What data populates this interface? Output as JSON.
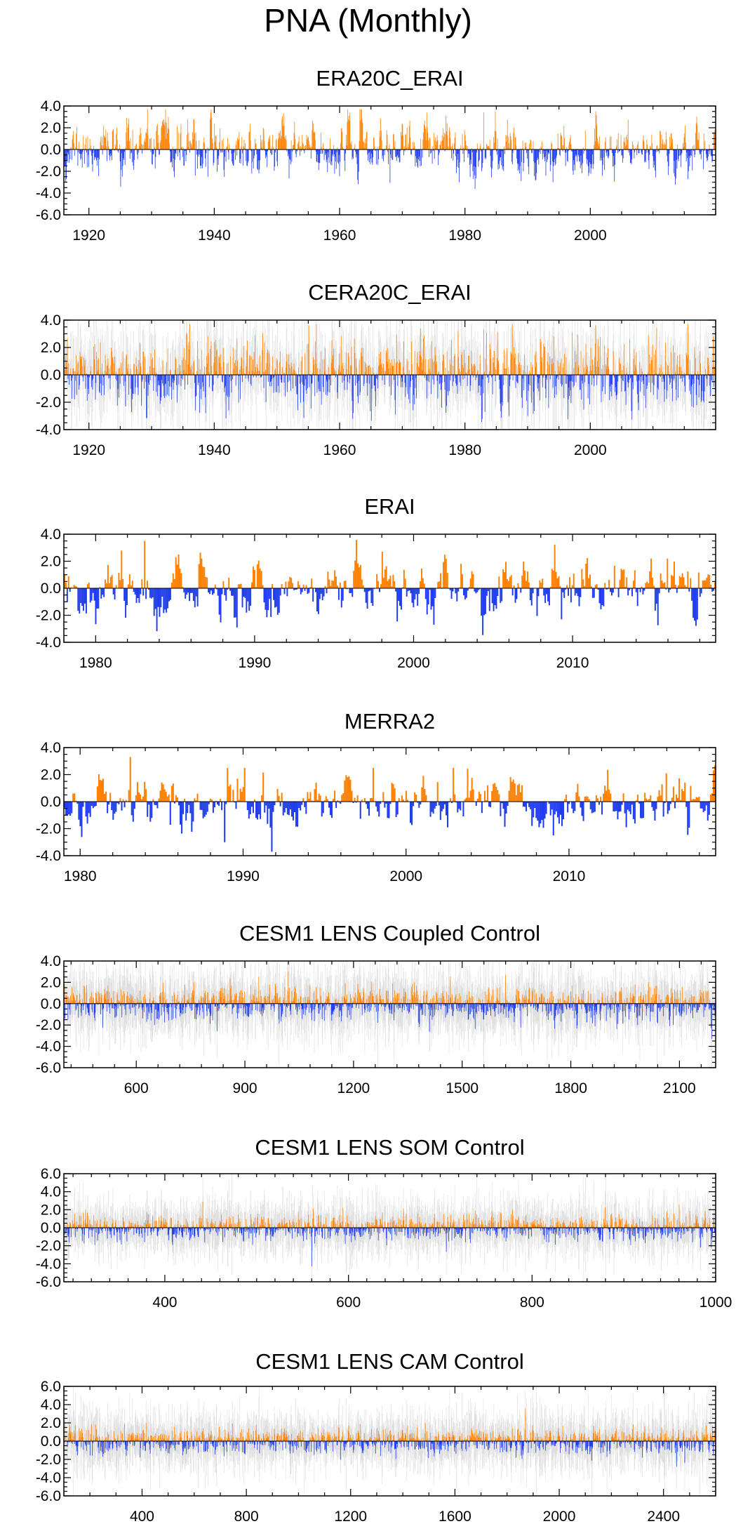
{
  "page": {
    "title": "PNA (Monthly)"
  },
  "colors": {
    "positive": "#ff8000",
    "negative": "#1f3cf0",
    "spread": "#b4b4b4",
    "axis": "#000000"
  },
  "chart_data": [
    {
      "id": "era20c-erai",
      "type": "bar",
      "title": "ERA20C_ERAI",
      "x_range": [
        1916,
        2020
      ],
      "ylim": [
        -6.0,
        4.0
      ],
      "yticks": [
        4.0,
        2.0,
        0.0,
        -2.0,
        -4.0,
        -6.0
      ],
      "yticklabels": [
        "4.0",
        "2.0",
        "0.0",
        "-2.0",
        "-4.0",
        "-6.0"
      ],
      "xticks": [
        1920,
        1940,
        1960,
        1980,
        2000
      ],
      "xticklabels": [
        "1920",
        "1940",
        "1960",
        "1980",
        "2000"
      ],
      "x_minor_step": 5,
      "y_minor_step": 0.5,
      "spread": false,
      "seed": 11,
      "n_bars": 1188,
      "amplitude": 2.2,
      "values_sample": [
        {
          "x": 1920,
          "y": -1.6
        },
        {
          "x": 1927,
          "y": 1.8
        },
        {
          "x": 1937,
          "y": -2.4
        },
        {
          "x": 1940,
          "y": 2.4
        },
        {
          "x": 1946,
          "y": -2.2
        },
        {
          "x": 1970,
          "y": 2.4
        },
        {
          "x": 1983,
          "y": 3.4
        },
        {
          "x": 1989,
          "y": -2.9
        },
        {
          "x": 2018,
          "y": -1.8
        }
      ]
    },
    {
      "id": "cera20c-erai",
      "type": "bar",
      "title": "CERA20C_ERAI",
      "x_range": [
        1916,
        2020
      ],
      "ylim": [
        -4.0,
        4.0
      ],
      "yticks": [
        4.0,
        2.0,
        0.0,
        -2.0,
        -4.0
      ],
      "yticklabels": [
        "4.0",
        "2.0",
        "0.0",
        "-2.0",
        "-4.0"
      ],
      "xticks": [
        1920,
        1940,
        1960,
        1980,
        2000
      ],
      "xticklabels": [
        "1920",
        "1940",
        "1960",
        "1980",
        "2000"
      ],
      "x_minor_step": 5,
      "y_minor_step": 0.5,
      "spread": true,
      "seed": 23,
      "n_bars": 1188,
      "amplitude": 2.2,
      "values_sample": [
        {
          "x": 1920,
          "y": -1.4
        },
        {
          "x": 1937,
          "y": -2.6
        },
        {
          "x": 1940,
          "y": 2.4
        },
        {
          "x": 1962,
          "y": -1.9
        },
        {
          "x": 1983,
          "y": 3.3
        },
        {
          "x": 1990,
          "y": -3.0
        },
        {
          "x": 2018,
          "y": -1.9
        }
      ]
    },
    {
      "id": "erai",
      "type": "bar",
      "title": "ERAI",
      "x_range": [
        1978,
        2019
      ],
      "ylim": [
        -4.0,
        4.0
      ],
      "yticks": [
        4.0,
        2.0,
        0.0,
        -2.0,
        -4.0
      ],
      "yticklabels": [
        "4.0",
        "2.0",
        "0.0",
        "-2.0",
        "-4.0"
      ],
      "xticks": [
        1980,
        1990,
        2000,
        2010
      ],
      "xticklabels": [
        "1980",
        "1990",
        "2000",
        "2010"
      ],
      "x_minor_step": 2,
      "y_minor_step": 0.5,
      "spread": false,
      "seed": 37,
      "n_bars": 480,
      "amplitude": 1.9,
      "values_sample": [
        {
          "x": 1983.1,
          "y": 3.5
        },
        {
          "x": 1988.9,
          "y": -2.9
        },
        {
          "x": 1998,
          "y": 2.7
        },
        {
          "x": 2009.3,
          "y": -2.3
        },
        {
          "x": 2016,
          "y": 2.2
        },
        {
          "x": 2017.7,
          "y": -2.4
        }
      ]
    },
    {
      "id": "merra2",
      "type": "bar",
      "title": "MERRA2",
      "x_range": [
        1979,
        2019
      ],
      "ylim": [
        -4.0,
        4.0
      ],
      "yticks": [
        4.0,
        2.0,
        0.0,
        -2.0,
        -4.0
      ],
      "yticklabels": [
        "4.0",
        "2.0",
        "0.0",
        "-2.0",
        "-4.0"
      ],
      "xticks": [
        1980,
        1990,
        2000,
        2010
      ],
      "xticklabels": [
        "1980",
        "1990",
        "2000",
        "2010"
      ],
      "x_minor_step": 2,
      "y_minor_step": 0.5,
      "spread": false,
      "seed": 41,
      "n_bars": 456,
      "amplitude": 1.8,
      "values_sample": [
        {
          "x": 1983.1,
          "y": 3.3
        },
        {
          "x": 1988.9,
          "y": -3.0
        },
        {
          "x": 1998,
          "y": 2.5
        },
        {
          "x": 2002.9,
          "y": 2.5
        },
        {
          "x": 2009,
          "y": -2.5
        },
        {
          "x": 2016,
          "y": 2.1
        }
      ]
    },
    {
      "id": "lens-coupled",
      "type": "bar",
      "title": "CESM1 LENS Coupled Control",
      "x_range": [
        400,
        2200
      ],
      "ylim": [
        -6.0,
        4.0
      ],
      "yticks": [
        4.0,
        2.0,
        0.0,
        -2.0,
        -4.0,
        -6.0
      ],
      "yticklabels": [
        "4.0",
        "2.0",
        "0.0",
        "-2.0",
        "-4.0",
        "-6.0"
      ],
      "xticks": [
        600,
        900,
        1200,
        1500,
        1800,
        2100
      ],
      "xticklabels": [
        "600",
        "900",
        "1200",
        "1500",
        "1800",
        "2100"
      ],
      "x_minor_step": 60,
      "y_minor_step": 0.5,
      "spread": true,
      "seed": 53,
      "n_bars": 1500,
      "amplitude": 1.4,
      "values_sample": [
        {
          "x": 1020,
          "y": 3.0
        },
        {
          "x": 1620,
          "y": 2.7
        },
        {
          "x": 2190,
          "y": -3.3
        }
      ]
    },
    {
      "id": "lens-som",
      "type": "bar",
      "title": "CESM1 LENS SOM Control",
      "x_range": [
        290,
        1000
      ],
      "ylim": [
        -6.0,
        6.0
      ],
      "yticks": [
        6.0,
        4.0,
        2.0,
        0.0,
        -2.0,
        -4.0,
        -6.0
      ],
      "yticklabels": [
        "6.0",
        "4.0",
        "2.0",
        "0.0",
        "-2.0",
        "-4.0",
        "-6.0"
      ],
      "xticks": [
        400,
        600,
        800,
        1000
      ],
      "xticklabels": [
        "400",
        "600",
        "800",
        "1000"
      ],
      "x_minor_step": 20,
      "y_minor_step": 0.5,
      "spread": true,
      "seed": 67,
      "n_bars": 1400,
      "amplitude": 1.3,
      "values_sample": [
        {
          "x": 560,
          "y": -4.3
        },
        {
          "x": 960,
          "y": 2.6
        },
        {
          "x": 995,
          "y": -2.2
        }
      ]
    },
    {
      "id": "lens-cam",
      "type": "bar",
      "title": "CESM1 LENS CAM Control",
      "x_range": [
        100,
        2600
      ],
      "ylim": [
        -6.0,
        6.0
      ],
      "yticks": [
        6.0,
        4.0,
        2.0,
        0.0,
        -2.0,
        -4.0,
        -6.0
      ],
      "yticklabels": [
        "6.0",
        "4.0",
        "2.0",
        "0.0",
        "-2.0",
        "-4.0",
        "-6.0"
      ],
      "xticks": [
        400,
        800,
        1200,
        1600,
        2000,
        2400
      ],
      "xticklabels": [
        "400",
        "800",
        "1200",
        "1600",
        "2000",
        "2400"
      ],
      "x_minor_step": 100,
      "y_minor_step": 0.5,
      "spread": true,
      "seed": 79,
      "n_bars": 1550,
      "amplitude": 1.3,
      "values_sample": [
        {
          "x": 1870,
          "y": 3.6
        },
        {
          "x": 2450,
          "y": -2.8
        }
      ]
    }
  ]
}
